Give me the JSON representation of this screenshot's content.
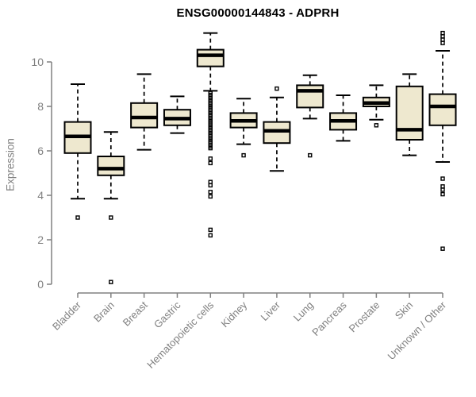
{
  "colors": {
    "box_fill": "#EEE8CF",
    "box_stroke": "#000000",
    "median": "#000000",
    "whisker": "#000000",
    "outlier": "#000000",
    "axis": "#808080",
    "tick_label": "#808080",
    "title": "#000000",
    "background": "#FFFFFF"
  },
  "chart_data": {
    "type": "box",
    "title": "ENSG00000144843 - ADPRH",
    "ylabel": "Expression",
    "xlabel": "",
    "ylim": [
      0,
      11.4
    ],
    "yticks": [
      0,
      2,
      4,
      6,
      8,
      10
    ],
    "grid": false,
    "legend": false,
    "categories": [
      "Bladder",
      "Brain",
      "Breast",
      "Gastric",
      "Hematopoietic cells",
      "Kidney",
      "Liver",
      "Lung",
      "Pancreas",
      "Prostate",
      "Skin",
      "Unknown / Other"
    ],
    "boxes": [
      {
        "category": "Bladder",
        "whisker_low": 3.85,
        "q1": 5.9,
        "median": 6.65,
        "q3": 7.3,
        "whisker_high": 9.0,
        "outliers": [
          3.0
        ]
      },
      {
        "category": "Brain",
        "whisker_low": 3.85,
        "q1": 4.9,
        "median": 5.2,
        "q3": 5.75,
        "whisker_high": 6.85,
        "outliers": [
          3.0,
          0.1
        ]
      },
      {
        "category": "Breast",
        "whisker_low": 6.05,
        "q1": 7.05,
        "median": 7.5,
        "q3": 8.15,
        "whisker_high": 9.45,
        "outliers": []
      },
      {
        "category": "Gastric",
        "whisker_low": 6.8,
        "q1": 7.15,
        "median": 7.45,
        "q3": 7.85,
        "whisker_high": 8.45,
        "outliers": []
      },
      {
        "category": "Hematopoietic cells",
        "whisker_low": 8.7,
        "q1": 9.8,
        "median": 10.3,
        "q3": 10.55,
        "whisker_high": 11.3,
        "outliers": [
          8.6,
          8.52,
          8.45,
          8.38,
          8.3,
          8.22,
          8.15,
          8.08,
          8.0,
          7.92,
          7.85,
          7.78,
          7.7,
          7.62,
          7.55,
          7.48,
          7.4,
          7.32,
          7.25,
          7.18,
          7.1,
          7.02,
          6.95,
          6.88,
          6.8,
          6.72,
          6.65,
          6.58,
          6.5,
          6.42,
          6.35,
          6.28,
          6.2,
          6.12,
          5.65,
          5.45,
          4.6,
          4.45,
          4.15,
          3.95,
          2.45,
          2.2
        ]
      },
      {
        "category": "Kidney",
        "whisker_low": 6.3,
        "q1": 7.05,
        "median": 7.35,
        "q3": 7.7,
        "whisker_high": 8.35,
        "outliers": [
          5.8
        ]
      },
      {
        "category": "Liver",
        "whisker_low": 5.1,
        "q1": 6.35,
        "median": 6.9,
        "q3": 7.3,
        "whisker_high": 8.4,
        "outliers": [
          8.8
        ]
      },
      {
        "category": "Lung",
        "whisker_low": 7.45,
        "q1": 7.95,
        "median": 8.7,
        "q3": 8.95,
        "whisker_high": 9.4,
        "outliers": [
          5.8
        ]
      },
      {
        "category": "Pancreas",
        "whisker_low": 6.45,
        "q1": 6.95,
        "median": 7.35,
        "q3": 7.7,
        "whisker_high": 8.5,
        "outliers": []
      },
      {
        "category": "Prostate",
        "whisker_low": 7.4,
        "q1": 8.0,
        "median": 8.15,
        "q3": 8.4,
        "whisker_high": 8.95,
        "outliers": [
          7.15
        ]
      },
      {
        "category": "Skin",
        "whisker_low": 5.8,
        "q1": 6.5,
        "median": 6.95,
        "q3": 8.9,
        "whisker_high": 9.45,
        "outliers": []
      },
      {
        "category": "Unknown / Other",
        "whisker_low": 5.5,
        "q1": 7.15,
        "median": 8.0,
        "q3": 8.55,
        "whisker_high": 10.5,
        "outliers": [
          11.3,
          11.15,
          11.0,
          10.85,
          4.75,
          4.4,
          4.25,
          4.05,
          1.6
        ]
      }
    ]
  }
}
